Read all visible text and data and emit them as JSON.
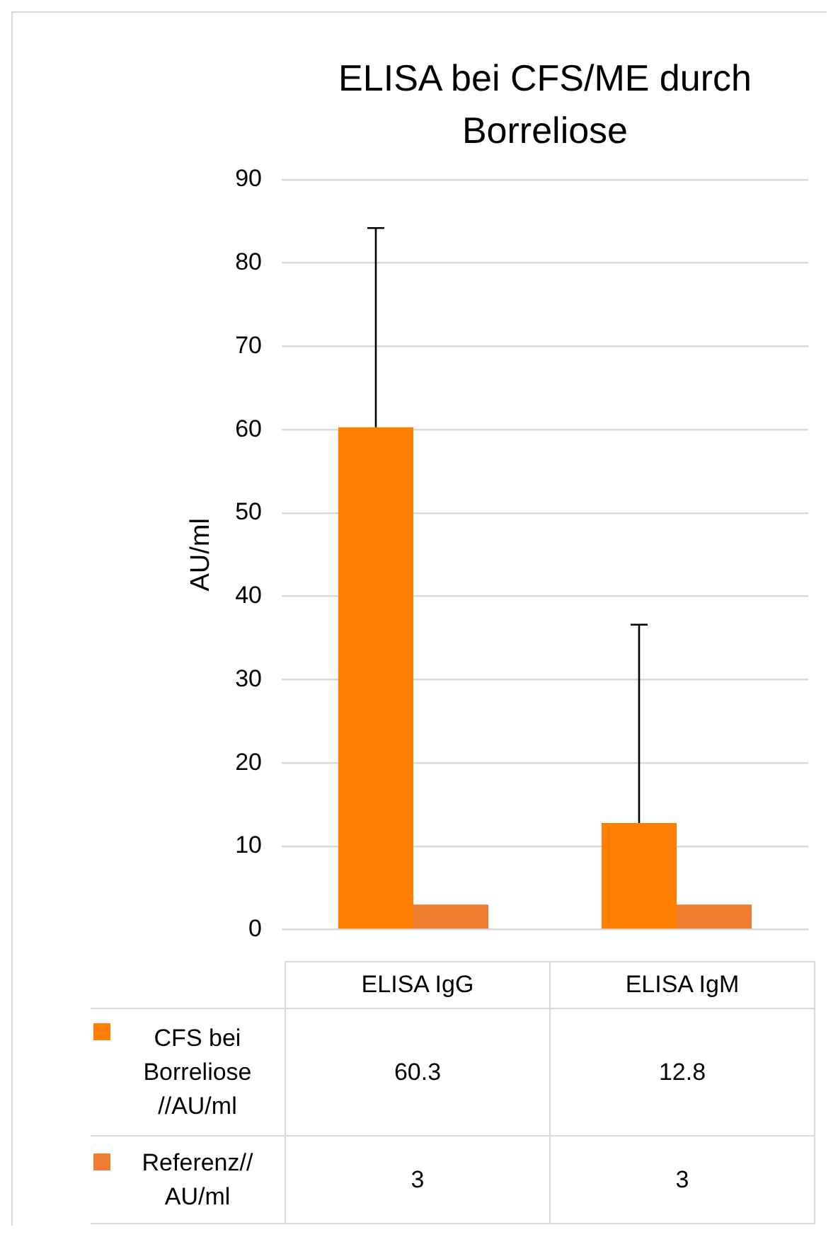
{
  "chart_data": {
    "type": "bar",
    "title": "ELISA bei CFS/ME durch Borreliose",
    "ylabel": "AU/ml",
    "categories": [
      "ELISA IgG",
      "ELISA IgM"
    ],
    "series": [
      {
        "name": "CFS bei Borreliose //AU/ml",
        "color": "#ff8000",
        "values": [
          60.3,
          12.8
        ],
        "errors": [
          [
            60.3,
            84.2
          ],
          [
            12.8,
            36.6
          ]
        ]
      },
      {
        "name": "Referenz// AU/ml",
        "color": "#ed7d31",
        "values": [
          3,
          3
        ]
      }
    ],
    "ylim": [
      0,
      90
    ],
    "yticks": [
      0,
      10,
      20,
      30,
      40,
      50,
      60,
      70,
      80,
      90
    ],
    "grid": "y",
    "legend": "bottom",
    "data_labels": true
  }
}
